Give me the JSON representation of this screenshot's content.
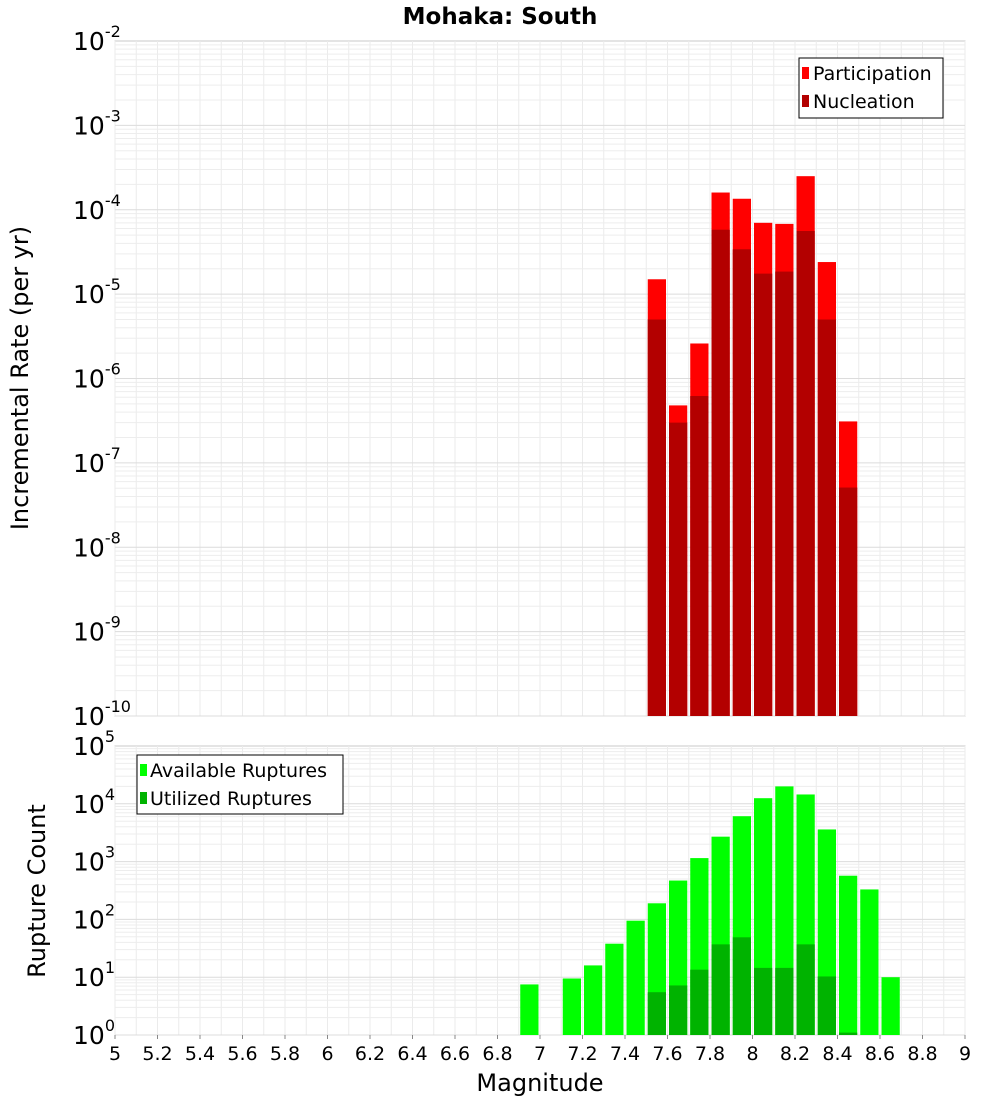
{
  "chart_data": [
    {
      "type": "bar",
      "title": "Mohaka: South",
      "xlabel": "Magnitude",
      "ylabel": "Incremental Rate (per yr)",
      "yscale": "log",
      "xlim": [
        5,
        9
      ],
      "ylim": [
        1e-10,
        0.01
      ],
      "yticks": [
        {
          "base": "10",
          "exp": "-10"
        },
        {
          "base": "10",
          "exp": "-9"
        },
        {
          "base": "10",
          "exp": "-8"
        },
        {
          "base": "10",
          "exp": "-7"
        },
        {
          "base": "10",
          "exp": "-6"
        },
        {
          "base": "10",
          "exp": "-5"
        },
        {
          "base": "10",
          "exp": "-4"
        },
        {
          "base": "10",
          "exp": "-3"
        },
        {
          "base": "10",
          "exp": "-2"
        }
      ],
      "grid": true,
      "legend": {
        "placement": "top-right"
      },
      "bin_width": 0.1,
      "series": [
        {
          "name": "Participation",
          "color": "#ff0000",
          "x": [
            7.55,
            7.65,
            7.75,
            7.85,
            7.95,
            8.05,
            8.15,
            8.25,
            8.35,
            8.45
          ],
          "values": [
            1.5e-05,
            4.8e-07,
            2.6e-06,
            0.00016,
            0.000135,
            7e-05,
            6.8e-05,
            0.00025,
            2.4e-05,
            3.1e-07
          ]
        },
        {
          "name": "Nucleation",
          "color": "#b30000",
          "x": [
            7.55,
            7.65,
            7.75,
            7.85,
            7.95,
            8.05,
            8.15,
            8.25,
            8.35,
            8.45
          ],
          "values": [
            5e-06,
            3e-07,
            6.2e-07,
            5.8e-05,
            3.4e-05,
            1.75e-05,
            1.85e-05,
            5.6e-05,
            5e-06,
            5.1e-08
          ]
        }
      ]
    },
    {
      "type": "bar",
      "xlabel": "Magnitude",
      "ylabel": "Rupture Count",
      "yscale": "log",
      "xlim": [
        5,
        9
      ],
      "ylim": [
        1,
        100000.0
      ],
      "xticks": [
        "5",
        "5.2",
        "5.4",
        "5.6",
        "5.8",
        "6",
        "6.2",
        "6.4",
        "6.6",
        "6.8",
        "7",
        "7.2",
        "7.4",
        "7.6",
        "7.8",
        "8",
        "8.2",
        "8.4",
        "8.6",
        "8.8",
        "9"
      ],
      "yticks": [
        {
          "base": "10",
          "exp": "0"
        },
        {
          "base": "10",
          "exp": "1"
        },
        {
          "base": "10",
          "exp": "2"
        },
        {
          "base": "10",
          "exp": "3"
        },
        {
          "base": "10",
          "exp": "4"
        },
        {
          "base": "10",
          "exp": "5"
        }
      ],
      "grid": true,
      "legend": {
        "placement": "top-left"
      },
      "bin_width": 0.1,
      "series": [
        {
          "name": "Available Ruptures",
          "color": "#00ff00",
          "x": [
            6.95,
            7.15,
            7.25,
            7.35,
            7.45,
            7.55,
            7.65,
            7.75,
            7.85,
            7.95,
            8.05,
            8.15,
            8.25,
            8.35,
            8.45,
            8.55,
            8.65
          ],
          "values": [
            7.5,
            9.5,
            16,
            38,
            95,
            190,
            470,
            1150,
            2700,
            6100,
            12500,
            20000,
            14500,
            3600,
            570,
            330,
            10
          ]
        },
        {
          "name": "Utilized Ruptures",
          "color": "#00b300",
          "x": [
            7.55,
            7.65,
            7.75,
            7.85,
            7.95,
            8.05,
            8.15,
            8.25,
            8.35,
            8.45
          ],
          "values": [
            5.5,
            7.2,
            13.5,
            37,
            49,
            14.5,
            14.5,
            37,
            10.3,
            1.1
          ]
        }
      ]
    }
  ]
}
